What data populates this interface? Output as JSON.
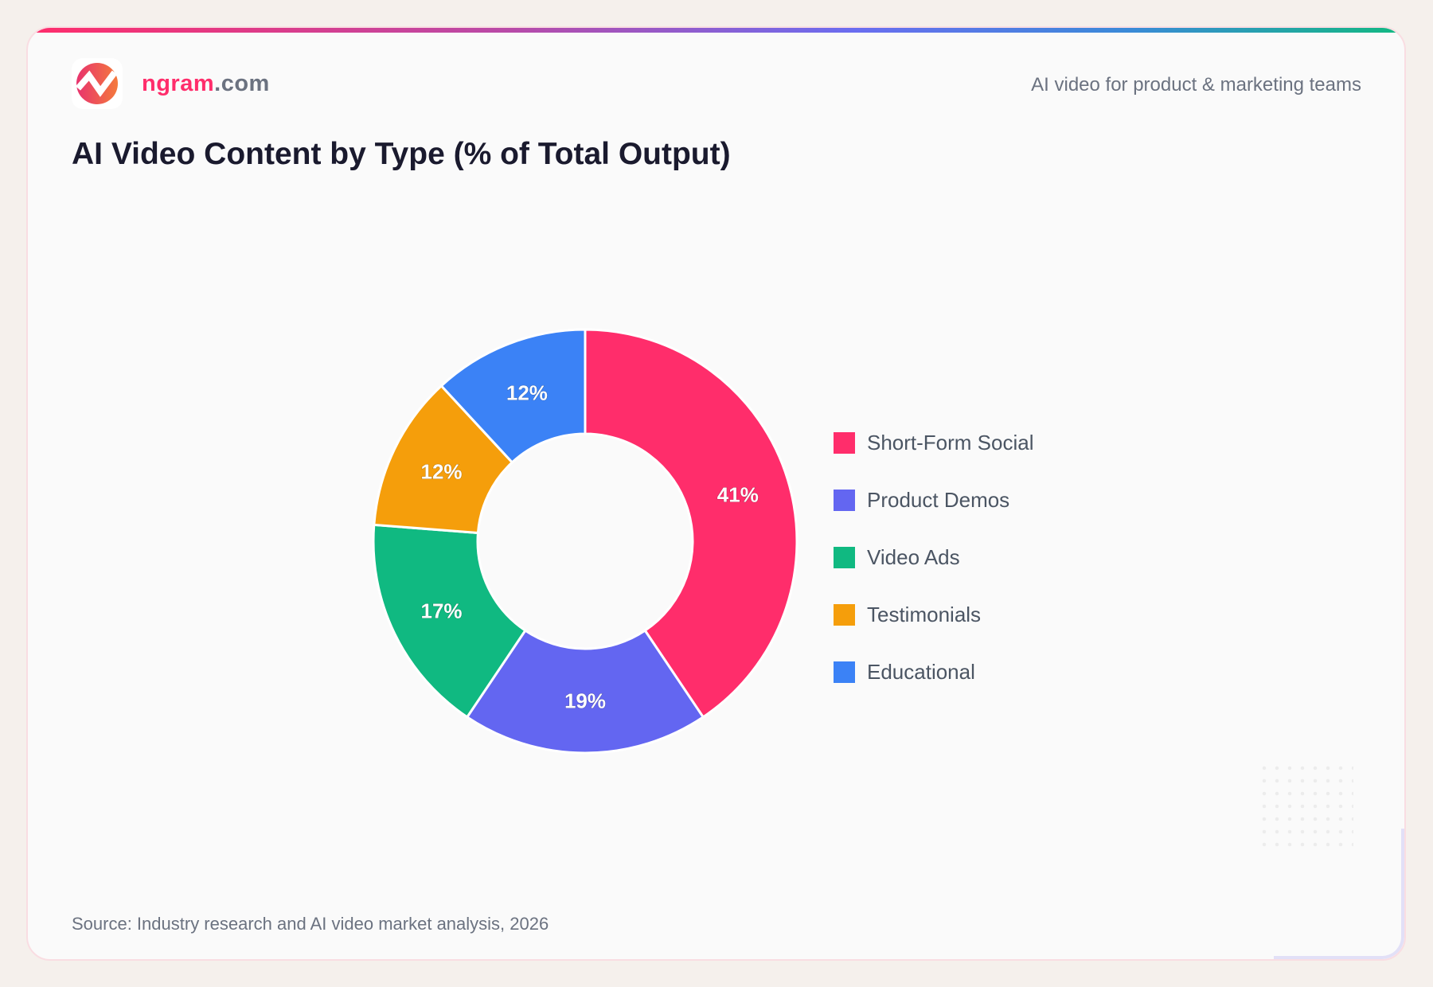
{
  "header": {
    "brand_name": "ngram",
    "brand_tld": ".com",
    "tagline": "AI video for product & marketing teams"
  },
  "footer": {
    "source": "Source: Industry research and AI video market analysis, 2026"
  },
  "chart_data": {
    "type": "pie",
    "donut": true,
    "title": "AI Video Content by Type (% of Total Output)",
    "legend_position": "right",
    "categories": [
      "Short-Form Social",
      "Product Demos",
      "Video Ads",
      "Testimonials",
      "Educational"
    ],
    "values": [
      41,
      19,
      17,
      12,
      12
    ],
    "labels": [
      "41%",
      "19%",
      "17%",
      "12%",
      "12%"
    ],
    "colors": [
      "#ff2d6b",
      "#6366f1",
      "#10b981",
      "#f59e0b",
      "#3b82f6"
    ]
  }
}
